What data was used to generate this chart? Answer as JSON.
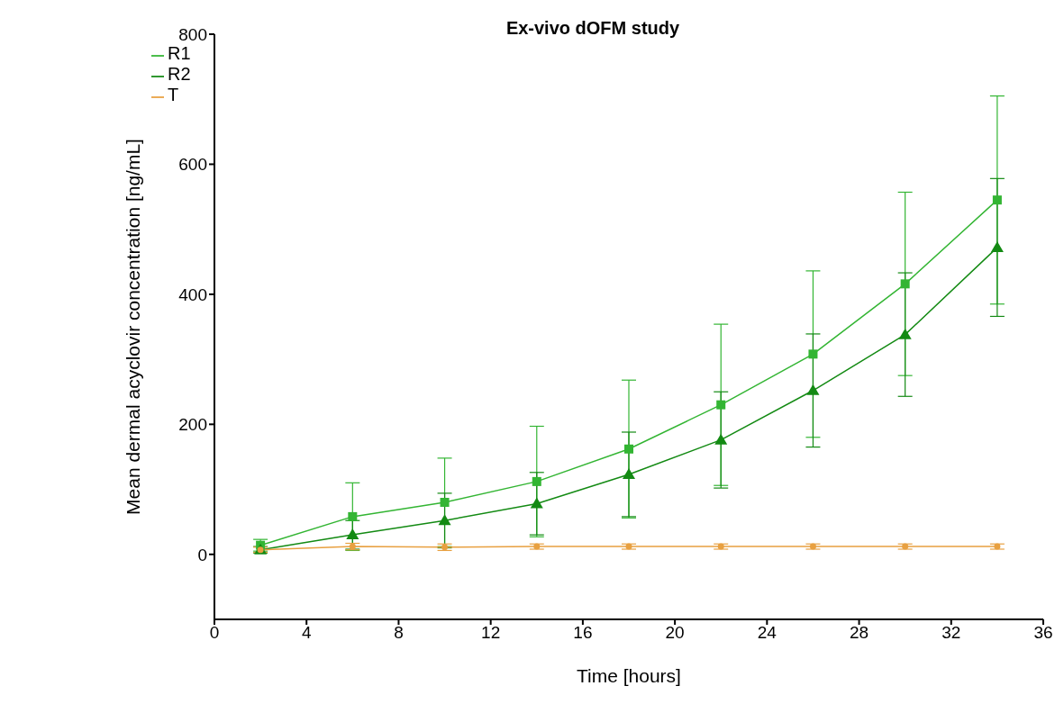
{
  "chart_data": {
    "type": "line",
    "title": "Ex-vivo dOFM study",
    "xlabel": "Time [hours]",
    "ylabel": "Mean dermal acyclovir  concentration [ng/mL]",
    "x": [
      2,
      6,
      10,
      14,
      18,
      22,
      26,
      30,
      34
    ],
    "series": [
      {
        "name": "R1",
        "color": "#33b533",
        "marker": "square",
        "values": [
          14,
          58,
          80,
          112,
          162,
          230,
          308,
          416,
          545
        ],
        "errors": [
          9,
          52,
          68,
          85,
          106,
          124,
          128,
          141,
          160
        ]
      },
      {
        "name": "R2",
        "color": "#138a13",
        "marker": "triangle",
        "values": [
          7,
          30,
          52,
          78,
          123,
          176,
          252,
          338,
          472
        ],
        "errors": [
          5,
          22,
          42,
          48,
          65,
          74,
          87,
          95,
          106
        ]
      },
      {
        "name": "T",
        "color": "#e8a040",
        "marker": "circle",
        "values": [
          7,
          12,
          11,
          12,
          12,
          12,
          12,
          12,
          12
        ],
        "errors": [
          4,
          5,
          5,
          4,
          4,
          4,
          4,
          4,
          4
        ]
      }
    ],
    "xlim": [
      0,
      36
    ],
    "xticks": [
      0,
      4,
      8,
      12,
      16,
      20,
      24,
      28,
      32,
      36
    ],
    "ylim": [
      -100,
      800
    ],
    "yticks": [
      0,
      200,
      400,
      600,
      800
    ],
    "grid": false,
    "legend": "top left",
    "line_style": "solid"
  }
}
